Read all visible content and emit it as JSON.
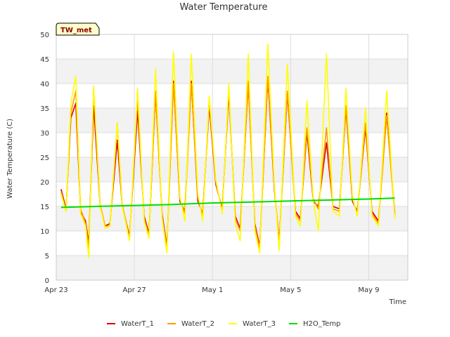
{
  "chart_data": {
    "type": "line",
    "title": "Water Temperature",
    "xlabel": "Time",
    "ylabel": "Water Temperature (C)",
    "badge": "TW_met",
    "ylim": [
      0,
      50
    ],
    "yticks": [
      0,
      5,
      10,
      15,
      20,
      25,
      30,
      35,
      40,
      45,
      50
    ],
    "xlim": [
      "2023-04-23",
      "2023-05-11"
    ],
    "xticks": [
      {
        "date": "2023-04-23",
        "label": "Apr 23"
      },
      {
        "date": "2023-04-27",
        "label": "Apr 27"
      },
      {
        "date": "2023-05-01",
        "label": "May 1"
      },
      {
        "date": "2023-05-05",
        "label": "May 5"
      },
      {
        "date": "2023-05-09",
        "label": "May 9"
      }
    ],
    "grid": true,
    "legend_position": "bottom",
    "series": [
      {
        "name": "WaterT_1",
        "color": "#dd0000",
        "points": [
          [
            "2023-04-23T06:00",
            18.5
          ],
          [
            "2023-04-23T12:00",
            14.5
          ],
          [
            "2023-04-23T18:00",
            33.0
          ],
          [
            "2023-04-24T00:00",
            36.0
          ],
          [
            "2023-04-24T06:00",
            14.0
          ],
          [
            "2023-04-24T12:00",
            12.0
          ],
          [
            "2023-04-24T16:00",
            7.5
          ],
          [
            "2023-04-24T22:00",
            35.5
          ],
          [
            "2023-04-25T06:00",
            15.0
          ],
          [
            "2023-04-25T12:00",
            11.0
          ],
          [
            "2023-04-25T18:00",
            11.5
          ],
          [
            "2023-04-26T03:00",
            28.5
          ],
          [
            "2023-04-26T09:00",
            15.0
          ],
          [
            "2023-04-26T18:00",
            9.0
          ],
          [
            "2023-04-27T04:00",
            34.5
          ],
          [
            "2023-04-27T12:00",
            13.0
          ],
          [
            "2023-04-27T18:00",
            9.5
          ],
          [
            "2023-04-28T02:00",
            38.0
          ],
          [
            "2023-04-28T10:00",
            13.5
          ],
          [
            "2023-04-28T16:00",
            7.0
          ],
          [
            "2023-04-29T00:00",
            40.5
          ],
          [
            "2023-04-29T08:00",
            16.0
          ],
          [
            "2023-04-29T14:00",
            14.0
          ],
          [
            "2023-04-29T22:00",
            40.5
          ],
          [
            "2023-04-30T06:00",
            16.0
          ],
          [
            "2023-04-30T12:00",
            13.5
          ],
          [
            "2023-04-30T20:00",
            35.5
          ],
          [
            "2023-05-01T04:00",
            19.5
          ],
          [
            "2023-05-01T12:00",
            14.5
          ],
          [
            "2023-05-01T20:00",
            38.0
          ],
          [
            "2023-05-02T04:00",
            13.0
          ],
          [
            "2023-05-02T10:00",
            10.5
          ],
          [
            "2023-05-02T20:00",
            40.0
          ],
          [
            "2023-05-03T04:00",
            11.5
          ],
          [
            "2023-05-03T10:00",
            7.0
          ],
          [
            "2023-05-03T20:00",
            41.0
          ],
          [
            "2023-05-04T04:00",
            18.5
          ],
          [
            "2023-05-04T10:00",
            8.0
          ],
          [
            "2023-05-04T20:00",
            38.0
          ],
          [
            "2023-05-05T06:00",
            14.0
          ],
          [
            "2023-05-05T12:00",
            12.5
          ],
          [
            "2023-05-05T20:00",
            30.0
          ],
          [
            "2023-05-06T04:00",
            16.0
          ],
          [
            "2023-05-06T10:00",
            15.0
          ],
          [
            "2023-05-06T20:00",
            28.0
          ],
          [
            "2023-05-07T04:00",
            15.0
          ],
          [
            "2023-05-07T12:00",
            14.5
          ],
          [
            "2023-05-07T20:00",
            35.0
          ],
          [
            "2023-05-08T04:00",
            16.0
          ],
          [
            "2023-05-08T10:00",
            14.0
          ],
          [
            "2023-05-08T20:00",
            31.0
          ],
          [
            "2023-05-09T04:00",
            14.0
          ],
          [
            "2023-05-09T12:00",
            12.0
          ],
          [
            "2023-05-09T22:00",
            34.0
          ],
          [
            "2023-05-10T08:00",
            13.5
          ]
        ]
      },
      {
        "name": "WaterT_2",
        "color": "#ff9900",
        "points": [
          [
            "2023-04-23T06:00",
            18.0
          ],
          [
            "2023-04-23T12:00",
            14.0
          ],
          [
            "2023-04-23T18:00",
            34.0
          ],
          [
            "2023-04-24T00:00",
            38.5
          ],
          [
            "2023-04-24T06:00",
            14.5
          ],
          [
            "2023-04-24T12:00",
            11.5
          ],
          [
            "2023-04-24T16:00",
            6.5
          ],
          [
            "2023-04-24T22:00",
            39.0
          ],
          [
            "2023-04-25T06:00",
            15.5
          ],
          [
            "2023-04-25T12:00",
            11.0
          ],
          [
            "2023-04-25T18:00",
            11.0
          ],
          [
            "2023-04-26T03:00",
            32.0
          ],
          [
            "2023-04-26T09:00",
            15.5
          ],
          [
            "2023-04-26T18:00",
            8.5
          ],
          [
            "2023-04-27T04:00",
            37.0
          ],
          [
            "2023-04-27T12:00",
            12.5
          ],
          [
            "2023-04-27T18:00",
            9.0
          ],
          [
            "2023-04-28T02:00",
            38.5
          ],
          [
            "2023-04-28T10:00",
            13.0
          ],
          [
            "2023-04-28T16:00",
            6.5
          ],
          [
            "2023-04-29T00:00",
            40.0
          ],
          [
            "2023-04-29T08:00",
            16.5
          ],
          [
            "2023-04-29T14:00",
            13.5
          ],
          [
            "2023-04-29T22:00",
            40.0
          ],
          [
            "2023-04-30T06:00",
            17.0
          ],
          [
            "2023-04-30T12:00",
            13.0
          ],
          [
            "2023-04-30T20:00",
            36.5
          ],
          [
            "2023-05-01T04:00",
            20.0
          ],
          [
            "2023-05-01T12:00",
            14.0
          ],
          [
            "2023-05-01T20:00",
            39.0
          ],
          [
            "2023-05-02T04:00",
            12.5
          ],
          [
            "2023-05-02T10:00",
            10.0
          ],
          [
            "2023-05-02T20:00",
            40.5
          ],
          [
            "2023-05-03T04:00",
            11.0
          ],
          [
            "2023-05-03T10:00",
            6.5
          ],
          [
            "2023-05-03T20:00",
            41.5
          ],
          [
            "2023-05-04T04:00",
            19.0
          ],
          [
            "2023-05-04T10:00",
            7.5
          ],
          [
            "2023-05-04T20:00",
            38.5
          ],
          [
            "2023-05-05T06:00",
            13.5
          ],
          [
            "2023-05-05T12:00",
            12.0
          ],
          [
            "2023-05-05T20:00",
            31.0
          ],
          [
            "2023-05-06T04:00",
            16.5
          ],
          [
            "2023-05-06T10:00",
            14.5
          ],
          [
            "2023-05-06T20:00",
            31.0
          ],
          [
            "2023-05-07T04:00",
            14.5
          ],
          [
            "2023-05-07T12:00",
            14.0
          ],
          [
            "2023-05-07T20:00",
            35.5
          ],
          [
            "2023-05-08T04:00",
            16.5
          ],
          [
            "2023-05-08T10:00",
            13.5
          ],
          [
            "2023-05-08T20:00",
            32.0
          ],
          [
            "2023-05-09T04:00",
            13.5
          ],
          [
            "2023-05-09T12:00",
            11.5
          ],
          [
            "2023-05-09T22:00",
            33.5
          ],
          [
            "2023-05-10T08:00",
            13.0
          ]
        ]
      },
      {
        "name": "WaterT_3",
        "color": "#ffff00",
        "points": [
          [
            "2023-04-23T06:00",
            17.5
          ],
          [
            "2023-04-23T12:00",
            14.0
          ],
          [
            "2023-04-23T18:00",
            36.0
          ],
          [
            "2023-04-24T00:00",
            41.5
          ],
          [
            "2023-04-24T06:00",
            13.5
          ],
          [
            "2023-04-24T12:00",
            11.0
          ],
          [
            "2023-04-24T16:00",
            4.5
          ],
          [
            "2023-04-24T22:00",
            39.5
          ],
          [
            "2023-04-25T06:00",
            15.0
          ],
          [
            "2023-04-25T12:00",
            10.5
          ],
          [
            "2023-04-25T18:00",
            11.0
          ],
          [
            "2023-04-26T03:00",
            32.0
          ],
          [
            "2023-04-26T09:00",
            15.0
          ],
          [
            "2023-04-26T18:00",
            8.0
          ],
          [
            "2023-04-27T04:00",
            39.0
          ],
          [
            "2023-04-27T12:00",
            12.0
          ],
          [
            "2023-04-27T18:00",
            8.5
          ],
          [
            "2023-04-28T02:00",
            43.0
          ],
          [
            "2023-04-28T10:00",
            12.5
          ],
          [
            "2023-04-28T16:00",
            5.5
          ],
          [
            "2023-04-29T00:00",
            46.5
          ],
          [
            "2023-04-29T08:00",
            17.0
          ],
          [
            "2023-04-29T14:00",
            12.0
          ],
          [
            "2023-04-29T22:00",
            46.0
          ],
          [
            "2023-04-30T06:00",
            17.5
          ],
          [
            "2023-04-30T12:00",
            12.0
          ],
          [
            "2023-04-30T20:00",
            37.5
          ],
          [
            "2023-05-01T04:00",
            20.5
          ],
          [
            "2023-05-01T12:00",
            13.5
          ],
          [
            "2023-05-01T20:00",
            40.0
          ],
          [
            "2023-05-02T04:00",
            11.5
          ],
          [
            "2023-05-02T10:00",
            8.0
          ],
          [
            "2023-05-02T20:00",
            46.0
          ],
          [
            "2023-05-03T04:00",
            10.0
          ],
          [
            "2023-05-03T10:00",
            5.5
          ],
          [
            "2023-05-03T20:00",
            48.0
          ],
          [
            "2023-05-04T04:00",
            19.5
          ],
          [
            "2023-05-04T10:00",
            6.0
          ],
          [
            "2023-05-04T20:00",
            44.0
          ],
          [
            "2023-05-05T06:00",
            13.0
          ],
          [
            "2023-05-05T12:00",
            11.0
          ],
          [
            "2023-05-05T20:00",
            36.5
          ],
          [
            "2023-05-06T04:00",
            16.0
          ],
          [
            "2023-05-06T10:00",
            10.0
          ],
          [
            "2023-05-06T20:00",
            46.0
          ],
          [
            "2023-05-07T04:00",
            14.0
          ],
          [
            "2023-05-07T12:00",
            13.0
          ],
          [
            "2023-05-07T20:00",
            39.0
          ],
          [
            "2023-05-08T04:00",
            17.0
          ],
          [
            "2023-05-08T10:00",
            13.0
          ],
          [
            "2023-05-08T20:00",
            35.0
          ],
          [
            "2023-05-09T04:00",
            13.0
          ],
          [
            "2023-05-09T12:00",
            11.0
          ],
          [
            "2023-05-09T22:00",
            38.5
          ],
          [
            "2023-05-10T08:00",
            12.5
          ]
        ]
      },
      {
        "name": "H2O_Temp",
        "color": "#00dd00",
        "points": [
          [
            "2023-04-23T06:00",
            14.8
          ],
          [
            "2023-04-25T00:00",
            15.0
          ],
          [
            "2023-04-27T00:00",
            15.2
          ],
          [
            "2023-04-29T00:00",
            15.4
          ],
          [
            "2023-05-01T00:00",
            15.7
          ],
          [
            "2023-05-03T00:00",
            15.9
          ],
          [
            "2023-05-05T00:00",
            16.1
          ],
          [
            "2023-05-07T00:00",
            16.3
          ],
          [
            "2023-05-09T00:00",
            16.5
          ],
          [
            "2023-05-10T08:00",
            16.7
          ]
        ]
      }
    ]
  }
}
